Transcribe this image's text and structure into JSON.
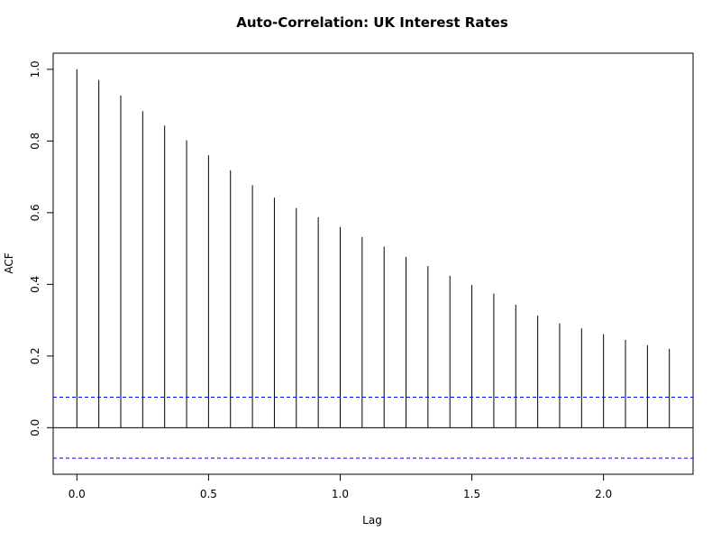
{
  "chart_data": {
    "type": "bar",
    "title": "Auto-Correlation: UK Interest Rates",
    "xlabel": "Lag",
    "ylabel": "ACF",
    "x": [
      0.0,
      0.0833,
      0.1667,
      0.25,
      0.3333,
      0.4167,
      0.5,
      0.5833,
      0.6667,
      0.75,
      0.8333,
      0.9167,
      1.0,
      1.0833,
      1.1667,
      1.25,
      1.3333,
      1.4167,
      1.5,
      1.5833,
      1.6667,
      1.75,
      1.8333,
      1.9167,
      2.0,
      2.0833,
      2.1667,
      2.25
    ],
    "values": [
      1.0,
      0.97,
      0.927,
      0.883,
      0.843,
      0.802,
      0.76,
      0.718,
      0.677,
      0.642,
      0.613,
      0.587,
      0.56,
      0.532,
      0.505,
      0.477,
      0.451,
      0.424,
      0.398,
      0.374,
      0.343,
      0.313,
      0.291,
      0.277,
      0.261,
      0.245,
      0.23,
      0.22
    ],
    "confidence_bound": 0.085,
    "confidence_color": "#0000ff",
    "xlim": [
      -0.09,
      2.34
    ],
    "ylim": [
      -0.13,
      1.045
    ],
    "xticks": [
      0.0,
      0.5,
      1.0,
      1.5,
      2.0
    ],
    "xtick_labels": [
      "0.0",
      "0.5",
      "1.0",
      "1.5",
      "2.0"
    ],
    "yticks": [
      0.0,
      0.2,
      0.4,
      0.6,
      0.8,
      1.0
    ],
    "ytick_labels": [
      "0.0",
      "0.2",
      "0.4",
      "0.6",
      "0.8",
      "1.0"
    ],
    "grid": false,
    "legend": "none"
  }
}
